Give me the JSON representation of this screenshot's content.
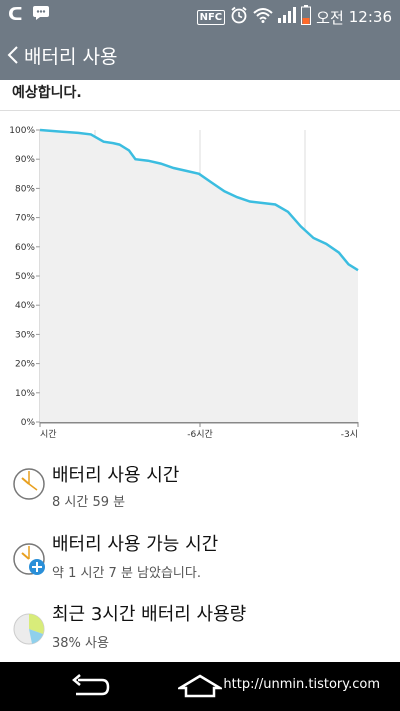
{
  "status": {
    "network": "ᑕ",
    "time_prefix": "오전",
    "time": "12:36",
    "nfc": "NFC"
  },
  "appbar": {
    "title": "배터리 사용"
  },
  "partial_text": "예상합니다.",
  "chart_data": {
    "type": "line",
    "title": "",
    "xlabel": "",
    "ylabel": "",
    "y_ticks": [
      "100%",
      "90%",
      "80%",
      "70%",
      "60%",
      "50%",
      "40%",
      "30%",
      "20%",
      "10%",
      "0%"
    ],
    "x_tick_labels": [
      "시간",
      "-6시간",
      "-3시"
    ],
    "ylim": [
      0,
      100
    ],
    "series": [
      {
        "color": "#3bbde0",
        "x": [
          0,
          0.06,
          0.12,
          0.16,
          0.2,
          0.23,
          0.25,
          0.28,
          0.3,
          0.34,
          0.38,
          0.42,
          0.46,
          0.5,
          0.54,
          0.58,
          0.62,
          0.66,
          0.7,
          0.74,
          0.78,
          0.82,
          0.86,
          0.9,
          0.94,
          0.97,
          1.0
        ],
        "y": [
          100,
          99.5,
          99,
          98.5,
          96,
          95.5,
          95,
          93,
          90,
          89.5,
          88.5,
          87,
          86,
          85,
          82,
          79,
          77,
          75.5,
          75,
          74.5,
          72,
          67,
          63,
          61,
          58,
          54,
          52
        ]
      }
    ]
  },
  "items": [
    {
      "title": "배터리 사용 시간",
      "sub": "8 시간 59 분"
    },
    {
      "title": "배터리 사용 가능 시간",
      "sub": "약 1 시간 7 분 남았습니다."
    },
    {
      "title": "최근 3시간 배터리 사용량",
      "sub": "38% 사용"
    }
  ],
  "footer": {
    "url": "http://unmin.tistory.com"
  }
}
